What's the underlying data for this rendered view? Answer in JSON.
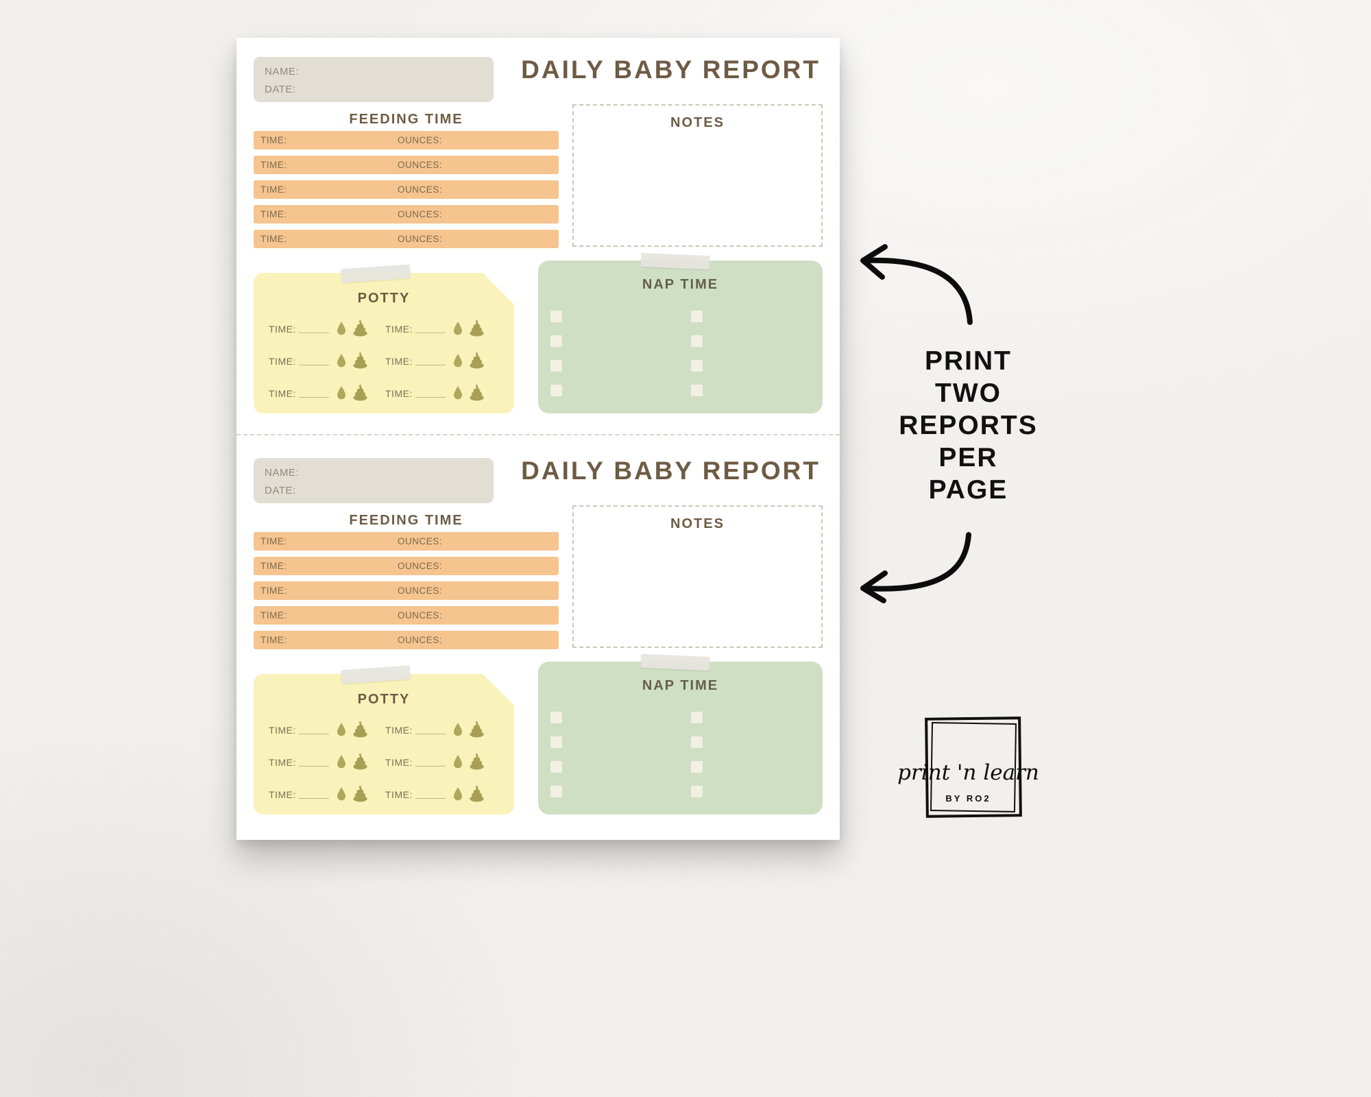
{
  "report": {
    "title": "DAILY BABY REPORT",
    "name_label": "NAME:",
    "date_label": "DATE:",
    "feeding": {
      "heading": "FEEDING TIME",
      "time_label": "TIME:",
      "ounces_label": "OUNCES:",
      "row_count": 5
    },
    "notes_heading": "NOTES",
    "potty": {
      "heading": "POTTY",
      "time_label": "TIME:",
      "entry_count": 6
    },
    "nap_heading": "NAP TIME",
    "nap_checkbox_count": 8
  },
  "annotation": {
    "lines": [
      "PRINT",
      "TWO",
      "REPORTS",
      "PER",
      "PAGE"
    ]
  },
  "logo": {
    "name": "print 'n learn",
    "byline": "BY RO2"
  },
  "colors": {
    "paper": "#f2f1ee",
    "page": "#ffffff",
    "brown": "#6e5b44",
    "beige": "#e3ded4",
    "peach": "#f5c48f",
    "yellow": "#f9f2ba",
    "green": "#cfdfc4",
    "cream": "#f2f0e3",
    "olive": "#b0a65c",
    "ink": "#111111"
  }
}
